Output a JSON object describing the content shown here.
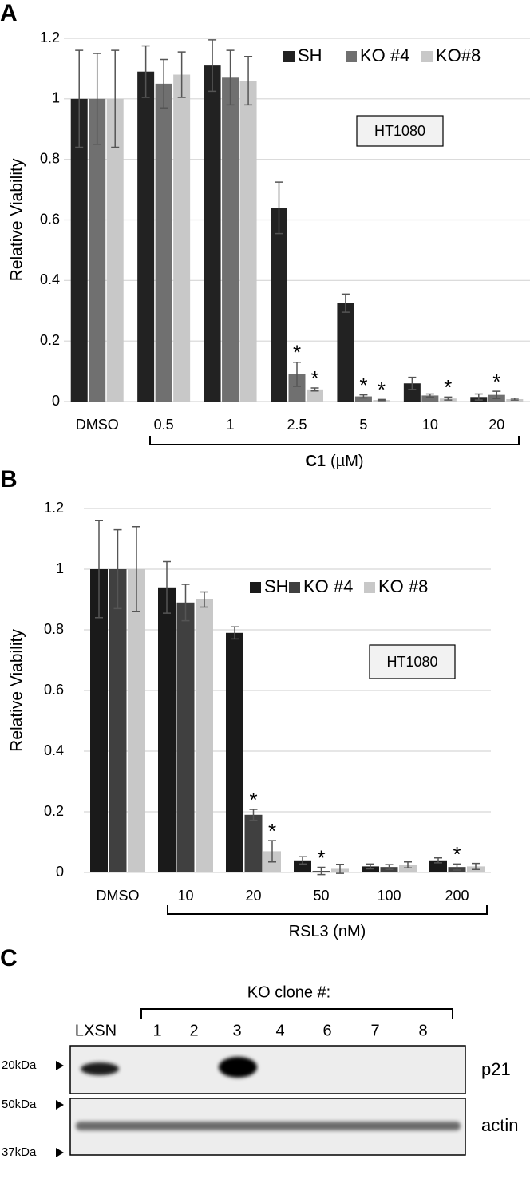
{
  "chart_data": [
    {
      "type": "bar",
      "panel_label": "A",
      "ylabel": "Relative Viability",
      "categories": [
        "DMSO",
        "0.5",
        "1",
        "2.5",
        "5",
        "10",
        "20"
      ],
      "xlabel_parts": [
        "C1",
        "(µM)"
      ],
      "annotation_box": "HT1080",
      "ylim": [
        0,
        1.2
      ],
      "yticks": [
        0,
        0.2,
        0.4,
        0.6,
        0.8,
        1,
        1.2
      ],
      "grid": true,
      "legend": "upper right",
      "series": [
        {
          "name": "SH",
          "color": "#222222",
          "values": [
            1,
            1.09,
            1.11,
            0.64,
            0.325,
            0.06,
            0.015
          ],
          "errors": [
            0.16,
            0.085,
            0.085,
            0.085,
            0.03,
            0.02,
            0.01
          ],
          "stars": [
            null,
            null,
            null,
            null,
            null,
            null,
            null
          ]
        },
        {
          "name": "KO #4",
          "color": "#707070",
          "values": [
            1,
            1.05,
            1.07,
            0.09,
            0.017,
            0.02,
            0.022
          ],
          "errors": [
            0.15,
            0.08,
            0.09,
            0.04,
            0.005,
            0.005,
            0.012
          ],
          "stars": [
            null,
            null,
            null,
            "*",
            "*",
            null,
            "*"
          ]
        },
        {
          "name": "KO#8",
          "color": "#c8c8c8",
          "values": [
            1,
            1.08,
            1.06,
            0.04,
            0.005,
            0.01,
            0.008
          ],
          "errors": [
            0.16,
            0.075,
            0.08,
            0.005,
            0.002,
            0.005,
            0.003
          ],
          "stars": [
            null,
            null,
            null,
            "*",
            "*",
            "*",
            null
          ]
        }
      ]
    },
    {
      "type": "bar",
      "panel_label": "B",
      "ylabel": "Relative Viability",
      "categories": [
        "DMSO",
        "10",
        "20",
        "50",
        "100",
        "200"
      ],
      "xlabel_parts": [
        "RSL3 (nM)"
      ],
      "annotation_box": "HT1080",
      "ylim": [
        0,
        1.2
      ],
      "yticks": [
        0,
        0.2,
        0.4,
        0.6,
        0.8,
        1,
        1.2
      ],
      "grid": true,
      "legend": "upper right",
      "series": [
        {
          "name": "SH",
          "color": "#1a1a1a",
          "values": [
            1,
            0.94,
            0.79,
            0.04,
            0.02,
            0.04
          ],
          "errors": [
            0.16,
            0.085,
            0.02,
            0.012,
            0.008,
            0.008
          ],
          "stars": [
            null,
            null,
            null,
            null,
            null,
            null
          ]
        },
        {
          "name": "KO #4",
          "color": "#404040",
          "values": [
            1,
            0.89,
            0.19,
            0.005,
            0.018,
            0.018
          ],
          "errors": [
            0.13,
            0.06,
            0.018,
            0.012,
            0.008,
            0.01
          ],
          "stars": [
            null,
            null,
            "*",
            "*",
            null,
            "*"
          ]
        },
        {
          "name": "KO #8",
          "color": "#c8c8c8",
          "values": [
            1,
            0.9,
            0.07,
            0.012,
            0.025,
            0.02
          ],
          "errors": [
            0.14,
            0.025,
            0.035,
            0.015,
            0.01,
            0.01
          ],
          "stars": [
            null,
            null,
            "*",
            null,
            null,
            null
          ]
        }
      ]
    }
  ],
  "blot": {
    "panel_label": "C",
    "group_label": "KO clone #:",
    "lanes": [
      "LXSN",
      "1",
      "2",
      "3",
      "4",
      "6",
      "7",
      "8"
    ],
    "markers": [
      "20kDa",
      "50kDa",
      "37kDa"
    ],
    "proteins": [
      "p21",
      "actin"
    ]
  }
}
